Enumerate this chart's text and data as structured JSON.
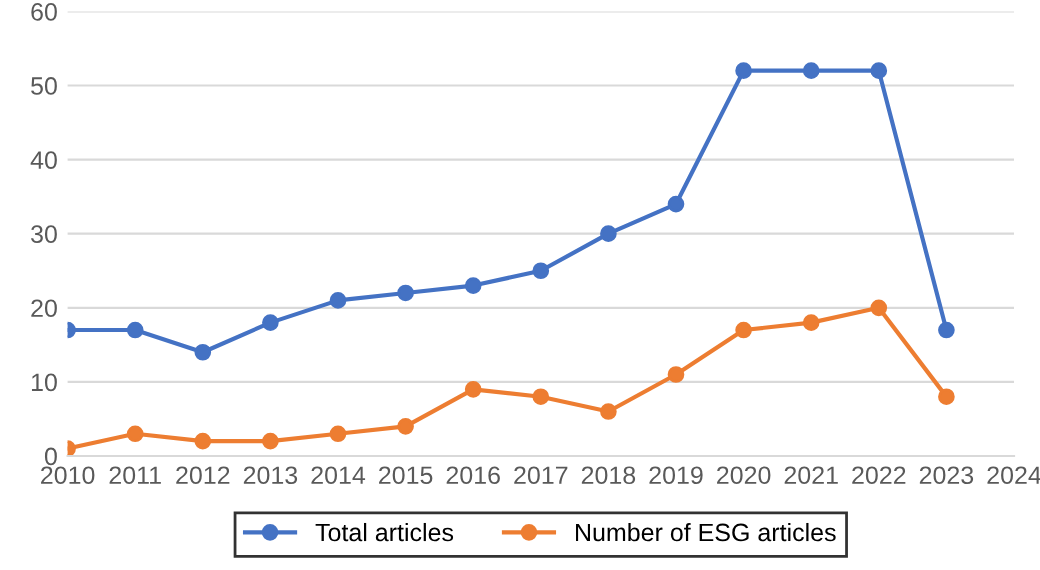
{
  "chart_data": {
    "type": "line",
    "x": [
      2010,
      2011,
      2012,
      2013,
      2014,
      2015,
      2016,
      2017,
      2018,
      2019,
      2020,
      2021,
      2022,
      2023
    ],
    "series": [
      {
        "name": "Total articles",
        "color": "#4472c4",
        "values": [
          17,
          17,
          14,
          18,
          21,
          22,
          23,
          25,
          30,
          34,
          52,
          52,
          52,
          17
        ]
      },
      {
        "name": "Number of ESG articles",
        "color": "#ed7d31",
        "values": [
          1,
          3,
          2,
          2,
          3,
          4,
          9,
          8,
          6,
          11,
          17,
          18,
          20,
          8
        ]
      }
    ],
    "xlim": [
      2010,
      2024
    ],
    "xticks": [
      2010,
      2011,
      2012,
      2013,
      2014,
      2015,
      2016,
      2017,
      2018,
      2019,
      2020,
      2021,
      2022,
      2023,
      2024
    ],
    "ylim": [
      0,
      60
    ],
    "yticks": [
      0,
      10,
      20,
      30,
      40,
      50,
      60
    ],
    "grid": "y",
    "legend": "bottom",
    "marker": "circle",
    "line_style": "solid"
  }
}
